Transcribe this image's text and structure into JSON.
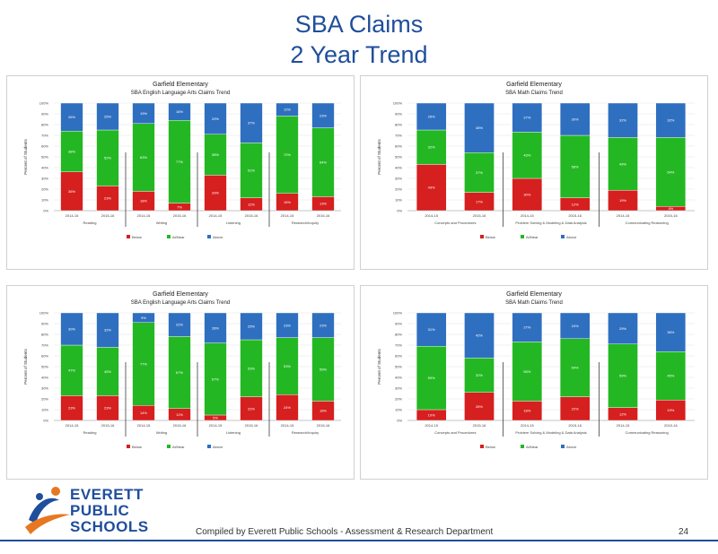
{
  "page": {
    "title_line1": "SBA Claims",
    "title_line2": "2 Year Trend",
    "footer": "Compiled  by Everett Public Schools - Assessment & Research Department",
    "page_number": "24",
    "logo_lines": [
      "EVERETT",
      "PUBLIC",
      "SCHOOLS"
    ]
  },
  "colors": {
    "red": "#d61f1f",
    "green": "#23b823",
    "blue": "#2f6fbf",
    "title": "#1f4e9c"
  },
  "chart_data": [
    {
      "type": "bar",
      "title": "Garfield Elementary",
      "subtitle": "SBA English Language Arts Claims Trend",
      "ylabel": "Percent of Students",
      "ylim": [
        0,
        100
      ],
      "yticks": [
        "0%",
        "10%",
        "20%",
        "30%",
        "40%",
        "50%",
        "60%",
        "70%",
        "80%",
        "90%",
        "100%"
      ],
      "categories": [
        "2014-15",
        "2015-16",
        "2014-15",
        "2015-16",
        "2014-15",
        "2015-16",
        "2014-15",
        "2015-16"
      ],
      "groups": [
        "Reading",
        "Writing",
        "Listening",
        "Research/Inquiry"
      ],
      "series": [
        {
          "name": "Below",
          "values": [
            36,
            23,
            18,
            7,
            33,
            12,
            16,
            13
          ]
        },
        {
          "name": "At/Near",
          "values": [
            38,
            52,
            63,
            77,
            38,
            51,
            72,
            64
          ]
        },
        {
          "name": "Above",
          "values": [
            26,
            25,
            19,
            16,
            29,
            37,
            12,
            23
          ]
        }
      ]
    },
    {
      "type": "bar",
      "title": "Garfield Elementary",
      "subtitle": "SBA Math Claims Trend",
      "ylabel": "Percent of Students",
      "ylim": [
        0,
        100
      ],
      "yticks": [
        "0%",
        "10%",
        "20%",
        "30%",
        "40%",
        "50%",
        "60%",
        "70%",
        "80%",
        "90%",
        "100%"
      ],
      "categories": [
        "2014-15",
        "2015-16",
        "2014-15",
        "2015-16",
        "2014-15",
        "2015-16"
      ],
      "groups": [
        "Concepts and Procedures",
        "Problem Solving & Modeling & Data Analysis",
        "Communicating Reasoning"
      ],
      "series": [
        {
          "name": "Below",
          "values": [
            43,
            17,
            30,
            12,
            19,
            4
          ]
        },
        {
          "name": "At/Near",
          "values": [
            32,
            37,
            43,
            58,
            49,
            64
          ]
        },
        {
          "name": "Above",
          "values": [
            25,
            46,
            27,
            30,
            32,
            32
          ]
        }
      ]
    },
    {
      "type": "bar",
      "title": "Garfield Elementary",
      "subtitle": "SBA English Language Arts Claims Trend",
      "ylabel": "Percent of Students",
      "ylim": [
        0,
        100
      ],
      "yticks": [
        "0%",
        "10%",
        "20%",
        "30%",
        "40%",
        "50%",
        "60%",
        "70%",
        "80%",
        "90%",
        "100%"
      ],
      "categories": [
        "2014-15",
        "2015-16",
        "2014-15",
        "2015-16",
        "2014-15",
        "2015-16",
        "2014-15",
        "2015-16"
      ],
      "groups": [
        "Reading",
        "Writing",
        "Listening",
        "Research/Inquiry"
      ],
      "series": [
        {
          "name": "Below",
          "values": [
            23,
            23,
            14,
            11,
            5,
            22,
            24,
            18
          ]
        },
        {
          "name": "At/Near",
          "values": [
            47,
            45,
            77,
            67,
            67,
            53,
            53,
            59
          ]
        },
        {
          "name": "Above",
          "values": [
            30,
            32,
            9,
            22,
            28,
            25,
            23,
            23
          ]
        }
      ]
    },
    {
      "type": "bar",
      "title": "Garfield Elementary",
      "subtitle": "SBA Math Claims Trend",
      "ylabel": "Percent of Students",
      "ylim": [
        0,
        100
      ],
      "yticks": [
        "0%",
        "10%",
        "20%",
        "30%",
        "40%",
        "50%",
        "60%",
        "70%",
        "80%",
        "90%",
        "100%"
      ],
      "categories": [
        "2014-15",
        "2015-16",
        "2014-15",
        "2015-16",
        "2014-15",
        "2015-16"
      ],
      "groups": [
        "Concepts and Procedures",
        "Problem Solving & Modeling & Data Analysis",
        "Communicating Reasoning"
      ],
      "series": [
        {
          "name": "Below",
          "values": [
            10,
            26,
            18,
            22,
            12,
            19
          ]
        },
        {
          "name": "At/Near",
          "values": [
            59,
            32,
            55,
            54,
            59,
            45
          ]
        },
        {
          "name": "Above",
          "values": [
            31,
            42,
            27,
            24,
            29,
            36
          ]
        }
      ]
    }
  ]
}
